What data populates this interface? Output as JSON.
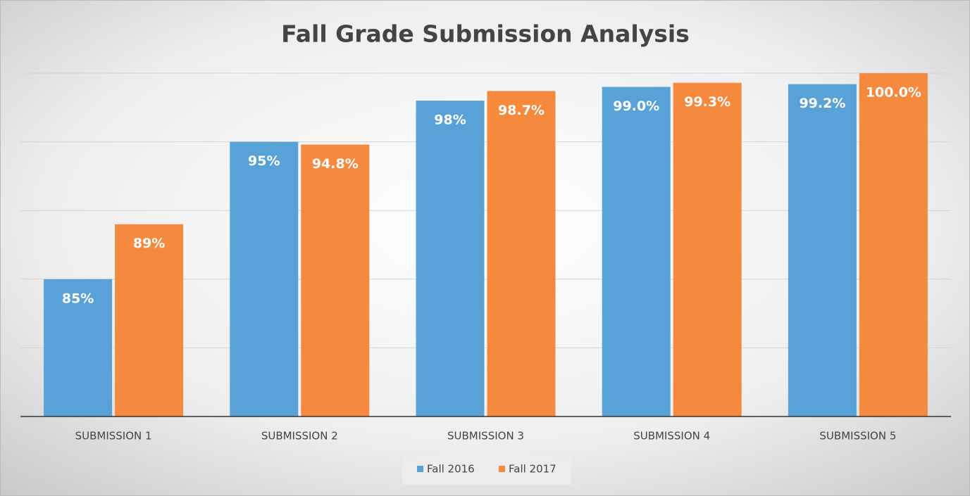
{
  "chart_data": {
    "type": "bar",
    "title": "Fall Grade Submission Analysis",
    "categories": [
      "SUBMISSION 1",
      "SUBMISSION 2",
      "SUBMISSION 3",
      "SUBMISSION 4",
      "SUBMISSION 5"
    ],
    "series": [
      {
        "name": "Fall 2016",
        "color": "#58a2d8",
        "values": [
          85,
          95,
          98,
          99.0,
          99.2
        ],
        "value_labels": [
          "85%",
          "95%",
          "98%",
          "99.0%",
          "99.2%"
        ]
      },
      {
        "name": "Fall 2017",
        "color": "#f5893d",
        "values": [
          89,
          94.8,
          98.7,
          99.3,
          100.0
        ],
        "value_labels": [
          "89%",
          "94.8%",
          "98.7%",
          "99.3%",
          "100.0%"
        ]
      }
    ],
    "ylim": [
      75,
      100
    ],
    "yticks": [
      75,
      80,
      85,
      90,
      95,
      100
    ],
    "grid": true,
    "legend": "bottom"
  }
}
